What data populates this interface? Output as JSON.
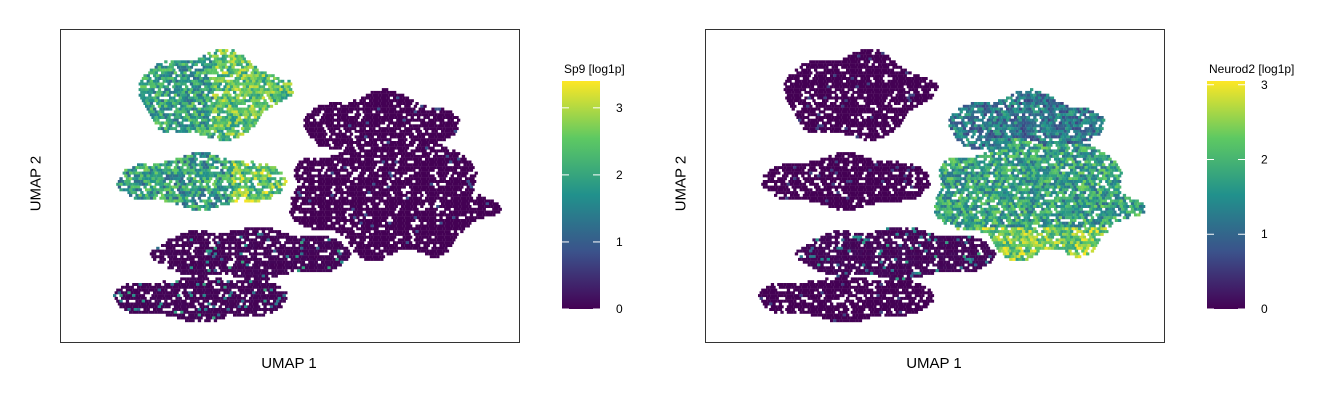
{
  "chart_data": [
    {
      "type": "scatter",
      "subtype": "hexbin-umap",
      "xlabel": "UMAP 1",
      "ylabel": "UMAP 2",
      "legend": {
        "title": "Sp9 [log1p]",
        "placement": "right",
        "ticks": [
          0,
          1,
          2,
          3
        ],
        "min": 0,
        "max": 3.4
      },
      "colormap": [
        "#440154",
        "#3b528b",
        "#21918c",
        "#5ec962",
        "#fde725"
      ],
      "high_region": "top-left clusters"
    },
    {
      "type": "scatter",
      "subtype": "hexbin-umap",
      "xlabel": "UMAP 1",
      "ylabel": "UMAP 2",
      "legend": {
        "title": "Neurod2 [log1p]",
        "placement": "right",
        "ticks": [
          0,
          1,
          2,
          3
        ],
        "min": 0,
        "max": 3.05
      },
      "colormap": [
        "#440154",
        "#3b528b",
        "#21918c",
        "#5ec962",
        "#fde725"
      ],
      "high_region": "right clusters"
    }
  ]
}
